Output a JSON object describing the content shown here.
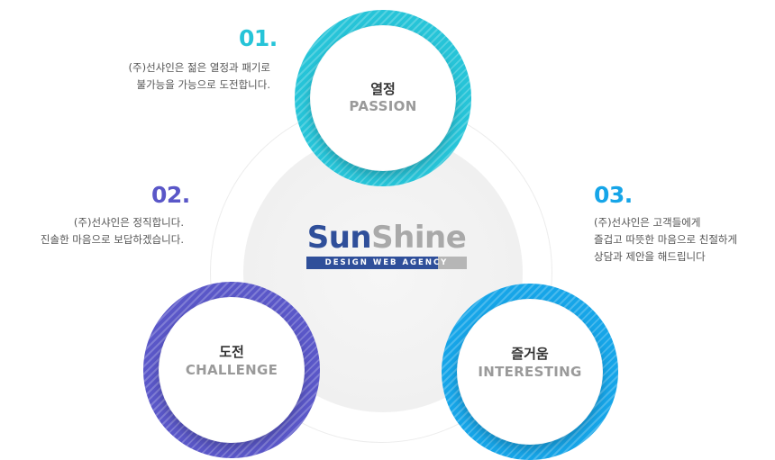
{
  "items": [
    {
      "number": "01.",
      "title": "열정",
      "subtitle": "PASSION",
      "description": [
        "(주)선샤인은 젊은 열정과 패기로",
        "불가능을 가능으로 도전합니다."
      ]
    },
    {
      "number": "02.",
      "title": "도전",
      "subtitle": "CHALLENGE",
      "description": [
        "(주)선샤인은 정직합니다.",
        "진솔한 마음으로 보답하겠습니다."
      ]
    },
    {
      "number": "03.",
      "title": "즐거움",
      "subtitle": "INTERESTING",
      "description": [
        "(주)선샤인은 고객들에게",
        "즐겁고 따뜻한 마음으로 친절하게",
        "상담과 제안을 해드립니다"
      ]
    }
  ],
  "logo": {
    "part1": "Sun",
    "part2": "Shine",
    "tagline": "DESIGN WEB AGENCY"
  },
  "colors": {
    "passion": "#26c4d8",
    "challenge": "#5a57c8",
    "interesting": "#16a5e8",
    "brand_blue": "#2f4f9a",
    "brand_gray": "#a9a9a9"
  }
}
